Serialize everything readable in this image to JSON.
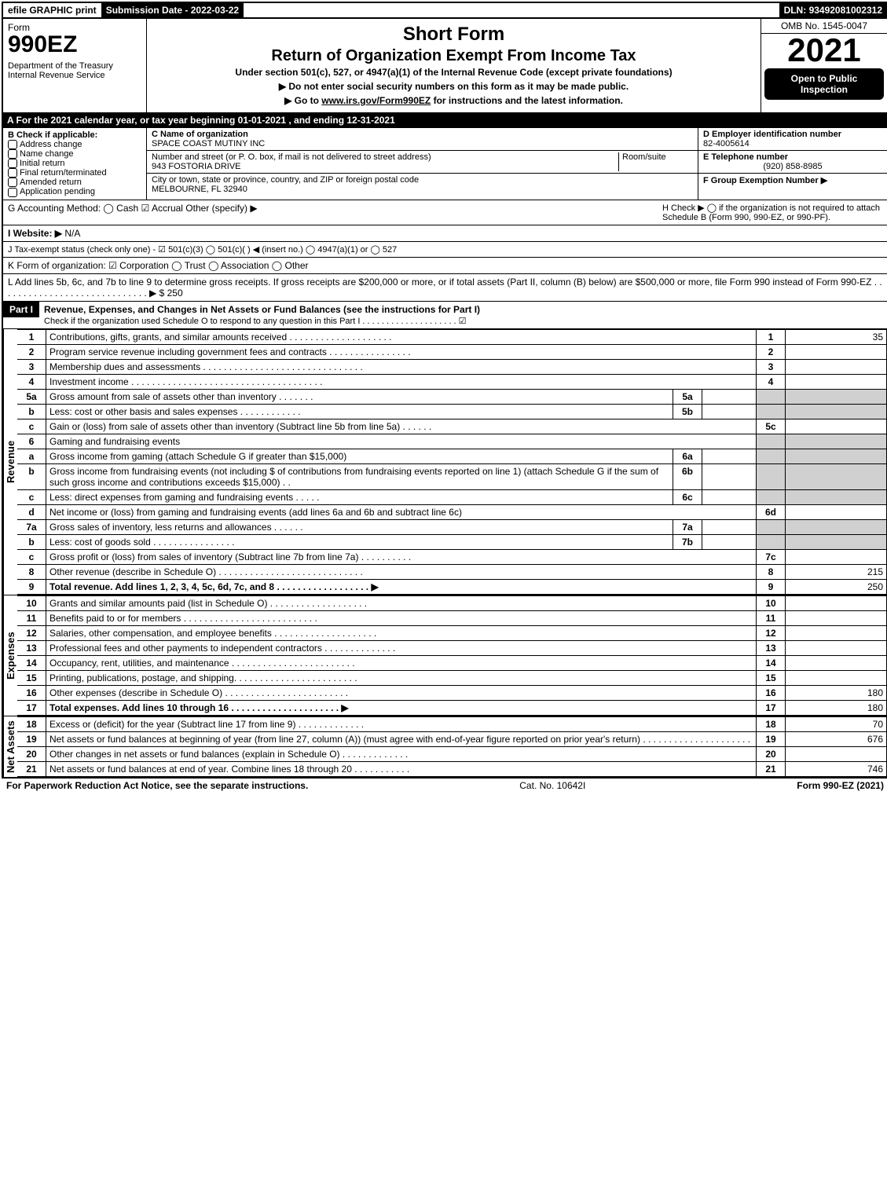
{
  "topbar": {
    "efile": "efile GRAPHIC print",
    "subdate_label": "Submission Date - ",
    "subdate": "2022-03-22",
    "dln_label": "DLN: ",
    "dln": "93492081002312"
  },
  "header": {
    "form_word": "Form",
    "form_num": "990EZ",
    "dept": "Department of the Treasury",
    "irs": "Internal Revenue Service",
    "short": "Short Form",
    "title": "Return of Organization Exempt From Income Tax",
    "sub": "Under section 501(c), 527, or 4947(a)(1) of the Internal Revenue Code (except private foundations)",
    "note1": "▶ Do not enter social security numbers on this form as it may be made public.",
    "note2": "▶ Go to www.irs.gov/Form990EZ for instructions and the latest information.",
    "omb": "OMB No. 1545-0047",
    "year": "2021",
    "open": "Open to Public Inspection"
  },
  "A": "A  For the 2021 calendar year, or tax year beginning 01-01-2021 , and ending 12-31-2021",
  "B": {
    "label": "B  Check if applicable:",
    "addr": "Address change",
    "name": "Name change",
    "init": "Initial return",
    "final": "Final return/terminated",
    "amend": "Amended return",
    "app": "Application pending"
  },
  "C": {
    "label": "C Name of organization",
    "org": "SPACE COAST MUTINY INC",
    "street_label": "Number and street (or P. O. box, if mail is not delivered to street address)",
    "room_label": "Room/suite",
    "street": "943 FOSTORIA DRIVE",
    "city_label": "City or town, state or province, country, and ZIP or foreign postal code",
    "city": "MELBOURNE, FL  32940"
  },
  "D": {
    "label": "D Employer identification number",
    "ein": "82-4005614"
  },
  "E": {
    "label": "E Telephone number",
    "phone": "(920) 858-8985"
  },
  "F": {
    "label": "F Group Exemption Number   ▶"
  },
  "G": "G Accounting Method:   ◯ Cash   ☑ Accrual   Other (specify) ▶",
  "H": "H    Check ▶  ◯  if the organization is not required to attach Schedule B (Form 990, 990-EZ, or 990-PF).",
  "I": {
    "label": "I Website: ▶",
    "val": "N/A"
  },
  "J": "J Tax-exempt status (check only one) - ☑ 501(c)(3) ◯ 501(c)(  ) ◀ (insert no.) ◯ 4947(a)(1) or ◯ 527",
  "K": "K Form of organization:   ☑ Corporation   ◯ Trust   ◯ Association   ◯ Other",
  "L": "L Add lines 5b, 6c, and 7b to line 9 to determine gross receipts. If gross receipts are $200,000 or more, or if total assets (Part II, column (B) below) are $500,000 or more, file Form 990 instead of Form 990-EZ . . . . . . . . . . . . . . . . . . . . . . . . . . . . . ▶ $ 250",
  "part1": {
    "bar": "Part I",
    "title": "Revenue, Expenses, and Changes in Net Assets or Fund Balances (see the instructions for Part I)",
    "sub": "Check if the organization used Schedule O to respond to any question in this Part I . . . . . . . . . . . . . . . . . . . . ☑"
  },
  "revenue_label": "Revenue",
  "expenses_label": "Expenses",
  "netassets_label": "Net Assets",
  "rev": [
    {
      "n": "1",
      "d": "Contributions, gifts, grants, and similar amounts received . . . . . . . . . . . . . . . . . . . .",
      "rn": "1",
      "v": "35"
    },
    {
      "n": "2",
      "d": "Program service revenue including government fees and contracts . . . . . . . . . . . . . . . .",
      "rn": "2",
      "v": ""
    },
    {
      "n": "3",
      "d": "Membership dues and assessments . . . . . . . . . . . . . . . . . . . . . . . . . . . . . . .",
      "rn": "3",
      "v": ""
    },
    {
      "n": "4",
      "d": "Investment income . . . . . . . . . . . . . . . . . . . . . . . . . . . . . . . . . . . . .",
      "rn": "4",
      "v": ""
    },
    {
      "n": "5a",
      "d": "Gross amount from sale of assets other than inventory . . . . . . .",
      "sn": "5a",
      "sv": "",
      "grey": true
    },
    {
      "n": "b",
      "d": "Less: cost or other basis and sales expenses . . . . . . . . . . . .",
      "sn": "5b",
      "sv": "",
      "grey": true
    },
    {
      "n": "c",
      "d": "Gain or (loss) from sale of assets other than inventory (Subtract line 5b from line 5a) . . . . . .",
      "rn": "5c",
      "v": ""
    },
    {
      "n": "6",
      "d": "Gaming and fundraising events",
      "grey": true,
      "noval": true
    },
    {
      "n": "a",
      "d": "Gross income from gaming (attach Schedule G if greater than $15,000)",
      "sn": "6a",
      "sv": "",
      "grey": true
    },
    {
      "n": "b",
      "d": "Gross income from fundraising events (not including $                     of contributions from fundraising events reported on line 1) (attach Schedule G if the sum of such gross income and contributions exceeds $15,000)   . .",
      "sn": "6b",
      "sv": "",
      "grey": true
    },
    {
      "n": "c",
      "d": "Less: direct expenses from gaming and fundraising events   . . . . .",
      "sn": "6c",
      "sv": "",
      "grey": true
    },
    {
      "n": "d",
      "d": "Net income or (loss) from gaming and fundraising events (add lines 6a and 6b and subtract line 6c)",
      "rn": "6d",
      "v": ""
    },
    {
      "n": "7a",
      "d": "Gross sales of inventory, less returns and allowances . . . . . .",
      "sn": "7a",
      "sv": "",
      "grey": true
    },
    {
      "n": "b",
      "d": "Less: cost of goods sold         . . . . . . . . . . . . . . . .",
      "sn": "7b",
      "sv": "",
      "grey": true
    },
    {
      "n": "c",
      "d": "Gross profit or (loss) from sales of inventory (Subtract line 7b from line 7a) . . . . . . . . . .",
      "rn": "7c",
      "v": ""
    },
    {
      "n": "8",
      "d": "Other revenue (describe in Schedule O) . . . . . . . . . . . . . . . . . . . . . . . . . . . .",
      "rn": "8",
      "v": "215"
    },
    {
      "n": "9",
      "d": "Total revenue. Add lines 1, 2, 3, 4, 5c, 6d, 7c, and 8  . . . . . . . . . . . . . . . . . .   ▶",
      "rn": "9",
      "v": "250",
      "bold": true
    }
  ],
  "exp": [
    {
      "n": "10",
      "d": "Grants and similar amounts paid (list in Schedule O) . . . . . . . . . . . . . . . . . . .",
      "rn": "10",
      "v": ""
    },
    {
      "n": "11",
      "d": "Benefits paid to or for members       . . . . . . . . . . . . . . . . . . . . . . . . . .",
      "rn": "11",
      "v": ""
    },
    {
      "n": "12",
      "d": "Salaries, other compensation, and employee benefits . . . . . . . . . . . . . . . . . . . .",
      "rn": "12",
      "v": ""
    },
    {
      "n": "13",
      "d": "Professional fees and other payments to independent contractors . . . . . . . . . . . . . .",
      "rn": "13",
      "v": ""
    },
    {
      "n": "14",
      "d": "Occupancy, rent, utilities, and maintenance . . . . . . . . . . . . . . . . . . . . . . . .",
      "rn": "14",
      "v": ""
    },
    {
      "n": "15",
      "d": "Printing, publications, postage, and shipping. . . . . . . . . . . . . . . . . . . . . . . .",
      "rn": "15",
      "v": ""
    },
    {
      "n": "16",
      "d": "Other expenses (describe in Schedule O)    . . . . . . . . . . . . . . . . . . . . . . . .",
      "rn": "16",
      "v": "180"
    },
    {
      "n": "17",
      "d": "Total expenses. Add lines 10 through 16     . . . . . . . . . . . . . . . . . . . . .   ▶",
      "rn": "17",
      "v": "180",
      "bold": true
    }
  ],
  "na": [
    {
      "n": "18",
      "d": "Excess or (deficit) for the year (Subtract line 17 from line 9)       . . . . . . . . . . . . .",
      "rn": "18",
      "v": "70"
    },
    {
      "n": "19",
      "d": "Net assets or fund balances at beginning of year (from line 27, column (A)) (must agree with end-of-year figure reported on prior year's return) . . . . . . . . . . . . . . . . . . . . .",
      "rn": "19",
      "v": "676"
    },
    {
      "n": "20",
      "d": "Other changes in net assets or fund balances (explain in Schedule O) . . . . . . . . . . . . .",
      "rn": "20",
      "v": ""
    },
    {
      "n": "21",
      "d": "Net assets or fund balances at end of year. Combine lines 18 through 20 . . . . . . . . . . .",
      "rn": "21",
      "v": "746"
    }
  ],
  "footer": {
    "left": "For Paperwork Reduction Act Notice, see the separate instructions.",
    "mid": "Cat. No. 10642I",
    "right": "Form 990-EZ (2021)"
  }
}
